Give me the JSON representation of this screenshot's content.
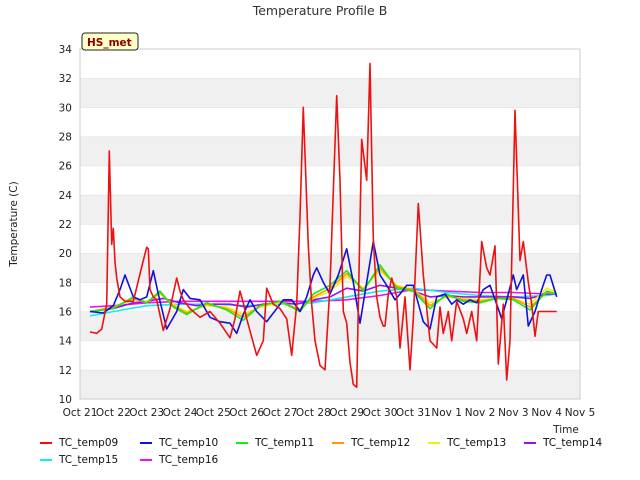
{
  "chart_data": {
    "type": "line",
    "title": "Temperature Profile B",
    "xlabel": "Time",
    "ylabel": "Temperature (C)",
    "annotation": "HS_met",
    "ylim": [
      10,
      34
    ],
    "yticks": [
      10,
      12,
      14,
      16,
      18,
      20,
      22,
      24,
      26,
      28,
      30,
      32,
      34
    ],
    "xlim": [
      0,
      15
    ],
    "xticks": [
      0,
      1,
      2,
      3,
      4,
      5,
      6,
      7,
      8,
      9,
      10,
      11,
      12,
      13,
      14,
      15
    ],
    "xtick_labels": [
      "Oct 21",
      "Oct 22",
      "Oct 23",
      "Oct 24",
      "Oct 25",
      "Oct 26",
      "Oct 27",
      "Oct 28",
      "Oct 29",
      "Oct 30",
      "Oct 31",
      "Nov 1",
      "Nov 2",
      "Nov 3",
      "Nov 4",
      "Nov 5"
    ],
    "grid": "horizontal bands",
    "legend_placement": "bottom",
    "series": [
      {
        "name": "TC_temp09",
        "color": "#ee1111",
        "x": [
          0.3,
          0.5,
          0.65,
          0.8,
          0.88,
          0.95,
          1.0,
          1.05,
          1.1,
          1.2,
          1.35,
          1.6,
          1.9,
          2.0,
          2.05,
          2.1,
          2.2,
          2.3,
          2.5,
          2.7,
          2.9,
          3.0,
          3.1,
          3.3,
          3.6,
          3.9,
          4.2,
          4.5,
          4.65,
          4.8,
          4.9,
          5.0,
          5.3,
          5.5,
          5.6,
          5.8,
          6.0,
          6.2,
          6.35,
          6.5,
          6.6,
          6.7,
          6.85,
          6.95,
          7.05,
          7.2,
          7.35,
          7.5,
          7.7,
          7.8,
          7.9,
          8.0,
          8.1,
          8.2,
          8.3,
          8.45,
          8.6,
          8.7,
          8.8,
          8.9,
          9.0,
          9.1,
          9.15,
          9.25,
          9.35,
          9.5,
          9.6,
          9.75,
          9.9,
          10.0,
          10.15,
          10.3,
          10.5,
          10.7,
          10.8,
          10.9,
          11.0,
          11.05,
          11.15,
          11.3,
          11.5,
          11.6,
          11.75,
          11.9,
          12.05,
          12.2,
          12.3,
          12.45,
          12.55,
          12.7,
          12.8,
          12.9,
          13.05,
          13.2,
          13.3,
          13.45,
          13.55,
          13.65,
          13.75,
          13.9,
          14.0,
          14.1,
          14.3
        ],
        "y": [
          14.6,
          14.5,
          14.8,
          16.5,
          27.0,
          20.6,
          21.7,
          19.4,
          18.3,
          17.0,
          16.7,
          16.7,
          19.5,
          20.4,
          20.3,
          17.5,
          17.0,
          16.8,
          14.7,
          16.2,
          18.3,
          17.4,
          16.8,
          16.2,
          15.6,
          16.0,
          15.2,
          14.2,
          15.5,
          17.4,
          16.6,
          15.5,
          13.0,
          14.0,
          17.6,
          16.5,
          16.2,
          15.5,
          13.0,
          16.5,
          22.5,
          30.0,
          20.5,
          16.5,
          14.0,
          12.3,
          12.0,
          17.8,
          30.8,
          25.0,
          16.0,
          15.2,
          12.5,
          11.0,
          10.8,
          27.8,
          25.0,
          33.0,
          21.0,
          17.0,
          15.6,
          15.0,
          15.0,
          17.2,
          18.3,
          17.0,
          13.5,
          17.0,
          12.0,
          15.5,
          23.4,
          18.5,
          14.0,
          13.5,
          16.3,
          14.5,
          15.5,
          16.0,
          14.0,
          16.7,
          15.5,
          14.5,
          16.0,
          14.0,
          20.8,
          19.0,
          18.5,
          20.5,
          12.4,
          16.5,
          11.3,
          14.0,
          29.8,
          19.5,
          20.8,
          18.0,
          16.5,
          14.3,
          16.0,
          16.0,
          16.0,
          16.0,
          16.0
        ]
      },
      {
        "name": "TC_temp10",
        "color": "#1111dd",
        "x": [
          0.3,
          0.7,
          1.0,
          1.2,
          1.35,
          1.6,
          1.8,
          2.0,
          2.2,
          2.35,
          2.6,
          2.9,
          3.1,
          3.3,
          3.6,
          3.9,
          4.2,
          4.5,
          4.7,
          4.9,
          5.1,
          5.3,
          5.6,
          5.9,
          6.1,
          6.35,
          6.6,
          6.8,
          7.0,
          7.1,
          7.3,
          7.5,
          7.75,
          8.0,
          8.2,
          8.4,
          8.6,
          8.8,
          9.0,
          9.2,
          9.45,
          9.6,
          9.8,
          10.0,
          10.3,
          10.5,
          10.7,
          10.95,
          11.15,
          11.3,
          11.5,
          11.7,
          11.9,
          12.1,
          12.3,
          12.5,
          12.65,
          12.8,
          13.0,
          13.1,
          13.3,
          13.45,
          13.65,
          13.85,
          14.0,
          14.1,
          14.3
        ],
        "y": [
          16.0,
          15.9,
          16.4,
          17.5,
          18.5,
          17.0,
          16.8,
          17.0,
          18.8,
          17.2,
          14.8,
          16.0,
          17.5,
          16.9,
          16.8,
          15.6,
          15.3,
          15.2,
          14.5,
          15.8,
          16.8,
          16.0,
          15.3,
          16.2,
          16.8,
          16.8,
          16.0,
          17.0,
          18.5,
          19.0,
          18.0,
          17.2,
          18.5,
          20.3,
          18.0,
          15.2,
          18.0,
          20.8,
          18.5,
          17.8,
          16.8,
          17.2,
          17.8,
          17.8,
          15.3,
          14.8,
          17.0,
          17.2,
          16.5,
          16.8,
          16.5,
          16.8,
          16.6,
          17.5,
          17.8,
          16.5,
          15.5,
          16.8,
          18.5,
          17.5,
          18.5,
          15.0,
          16.0,
          17.5,
          18.5,
          18.5,
          17.0
        ]
      },
      {
        "name": "TC_temp11",
        "color": "#11ee11",
        "x": [
          0.3,
          1.0,
          1.6,
          2.0,
          2.4,
          2.8,
          3.2,
          3.8,
          4.4,
          4.9,
          5.4,
          6.0,
          6.6,
          7.0,
          7.5,
          8.0,
          8.5,
          9.0,
          9.5,
          10.0,
          10.5,
          11.0,
          11.5,
          12.0,
          12.5,
          13.0,
          13.5,
          14.0,
          14.3
        ],
        "y": [
          16.0,
          16.2,
          17.0,
          16.6,
          17.4,
          16.3,
          15.8,
          16.6,
          16.1,
          15.4,
          16.4,
          16.7,
          16.0,
          17.2,
          17.8,
          18.8,
          17.4,
          19.2,
          17.6,
          17.4,
          16.2,
          17.2,
          16.7,
          16.6,
          16.9,
          16.8,
          16.1,
          17.4,
          17.2
        ]
      },
      {
        "name": "TC_temp12",
        "color": "#ff9900",
        "x": [
          0.3,
          1.0,
          1.6,
          2.0,
          2.4,
          2.8,
          3.2,
          3.8,
          4.4,
          4.9,
          5.4,
          6.0,
          6.6,
          7.0,
          7.5,
          8.0,
          8.5,
          9.0,
          9.5,
          10.0,
          10.5,
          11.0,
          11.5,
          12.0,
          12.5,
          13.0,
          13.5,
          14.0,
          14.3
        ],
        "y": [
          16.0,
          16.3,
          16.9,
          16.6,
          17.3,
          16.4,
          15.9,
          16.5,
          16.2,
          15.6,
          16.4,
          16.7,
          16.1,
          17.0,
          17.6,
          18.6,
          17.5,
          19.0,
          17.7,
          17.5,
          16.4,
          17.1,
          16.8,
          16.7,
          16.9,
          16.9,
          16.3,
          17.3,
          17.2
        ]
      },
      {
        "name": "TC_temp13",
        "color": "#eeee11",
        "x": [
          0.3,
          1.0,
          1.6,
          2.0,
          2.4,
          2.8,
          3.2,
          3.8,
          4.4,
          4.9,
          5.4,
          6.0,
          6.6,
          7.0,
          7.5,
          8.0,
          8.5,
          9.0,
          9.5,
          10.0,
          10.5,
          11.0,
          11.5,
          12.0,
          12.5,
          13.0,
          13.5,
          14.0,
          14.3
        ],
        "y": [
          16.0,
          16.3,
          16.8,
          16.7,
          17.2,
          16.5,
          16.0,
          16.4,
          16.3,
          15.8,
          16.3,
          16.6,
          16.2,
          16.9,
          17.4,
          18.4,
          17.6,
          18.8,
          17.8,
          17.5,
          16.6,
          17.0,
          16.9,
          16.8,
          16.9,
          16.9,
          16.5,
          17.6,
          17.3
        ]
      },
      {
        "name": "TC_temp14",
        "color": "#9911ee",
        "x": [
          0.3,
          1.0,
          1.6,
          2.0,
          2.5,
          3.0,
          3.5,
          4.0,
          4.5,
          5.0,
          5.5,
          6.0,
          6.5,
          7.0,
          7.5,
          8.0,
          8.5,
          9.0,
          9.5,
          10.0,
          10.5,
          11.0,
          11.5,
          12.0,
          12.5,
          13.0,
          13.5,
          14.0,
          14.3
        ],
        "y": [
          16.0,
          16.2,
          16.6,
          16.7,
          16.9,
          16.6,
          16.4,
          16.5,
          16.5,
          16.3,
          16.5,
          16.6,
          16.5,
          16.8,
          17.0,
          17.6,
          17.4,
          17.8,
          17.6,
          17.4,
          17.0,
          17.1,
          17.0,
          17.0,
          17.0,
          17.0,
          16.9,
          17.2,
          17.2
        ]
      },
      {
        "name": "TC_temp15",
        "color": "#11eeee",
        "x": [
          0.3,
          1.0,
          2.0,
          3.0,
          4.0,
          5.0,
          6.0,
          7.0,
          8.0,
          9.0,
          10.0,
          11.0,
          12.0,
          13.0,
          14.0,
          14.3
        ],
        "y": [
          15.7,
          16.0,
          16.4,
          16.5,
          16.5,
          16.4,
          16.5,
          16.6,
          17.0,
          17.4,
          17.6,
          17.3,
          17.1,
          17.0,
          17.1,
          17.2
        ]
      },
      {
        "name": "TC_temp16",
        "color": "#ee11ee",
        "x": [
          0.3,
          1.0,
          2.0,
          3.0,
          4.0,
          5.0,
          6.0,
          7.0,
          8.0,
          9.0,
          9.5,
          10.0,
          11.0,
          12.0,
          13.0,
          14.0,
          14.3
        ],
        "y": [
          16.3,
          16.4,
          16.6,
          16.7,
          16.7,
          16.7,
          16.7,
          16.7,
          16.8,
          17.1,
          17.3,
          17.5,
          17.4,
          17.3,
          17.3,
          17.2,
          17.2
        ]
      }
    ]
  }
}
